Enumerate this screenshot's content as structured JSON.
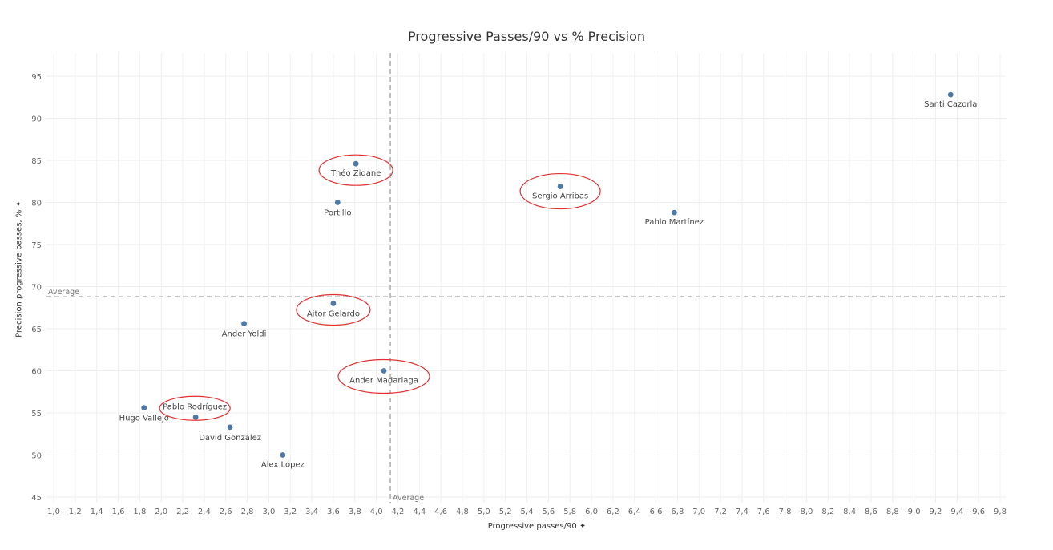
{
  "chart_data": {
    "type": "scatter",
    "title": "Progressive Passes/90 vs % Precision",
    "xlabel": "Progressive passes/90 ✦",
    "ylabel": "Precision progressive passes, % ✦",
    "xlim": [
      1.0,
      9.8
    ],
    "ylim": [
      45,
      97
    ],
    "x_ticks": [
      "1,0",
      "1,2",
      "1,4",
      "1,6",
      "1,8",
      "2,0",
      "2,2",
      "2,4",
      "2,6",
      "2,8",
      "3,0",
      "3,2",
      "3,4",
      "3,6",
      "3,8",
      "4,0",
      "4,2",
      "4,4",
      "4,6",
      "4,8",
      "5,0",
      "5,2",
      "5,4",
      "5,6",
      "5,8",
      "6,0",
      "6,2",
      "6,4",
      "6,6",
      "6,8",
      "7,0",
      "7,2",
      "7,4",
      "7,6",
      "7,8",
      "8,0",
      "8,2",
      "8,4",
      "8,6",
      "8,8",
      "9,0",
      "9,2",
      "9,4",
      "9,6",
      "9,8"
    ],
    "y_ticks": [
      "45",
      "50",
      "55",
      "60",
      "65",
      "70",
      "75",
      "80",
      "85",
      "90",
      "95"
    ],
    "grid": true,
    "marker_color": "#4e79a7",
    "highlight_color": "#e03030",
    "reference_lines": {
      "x_average": 4.13,
      "y_average": 68.8,
      "x_label": "Average",
      "y_label": "Average"
    },
    "points": [
      {
        "name": "Santi Cazorla",
        "x": 9.34,
        "y": 92.8,
        "highlighted": false
      },
      {
        "name": "Théo Zidane",
        "x": 3.81,
        "y": 84.6,
        "highlighted": true
      },
      {
        "name": "Sergio Arribas",
        "x": 5.71,
        "y": 81.9,
        "highlighted": true
      },
      {
        "name": "Portillo",
        "x": 3.64,
        "y": 80.0,
        "highlighted": false
      },
      {
        "name": "Pablo Martínez",
        "x": 6.77,
        "y": 78.8,
        "highlighted": false
      },
      {
        "name": "Aitor Gelardo",
        "x": 3.6,
        "y": 68.0,
        "highlighted": true
      },
      {
        "name": "Ander Yoldi",
        "x": 2.77,
        "y": 65.6,
        "highlighted": false
      },
      {
        "name": "Ander Madariaga",
        "x": 4.07,
        "y": 60.0,
        "highlighted": true
      },
      {
        "name": "Hugo Vallejo",
        "x": 1.84,
        "y": 55.6,
        "highlighted": false
      },
      {
        "name": "Pablo Rodríguez",
        "x": 2.32,
        "y": 54.5,
        "highlighted": true
      },
      {
        "name": "David González",
        "x": 2.64,
        "y": 53.3,
        "highlighted": false
      },
      {
        "name": "Álex López",
        "x": 3.13,
        "y": 50.0,
        "highlighted": false
      }
    ]
  }
}
